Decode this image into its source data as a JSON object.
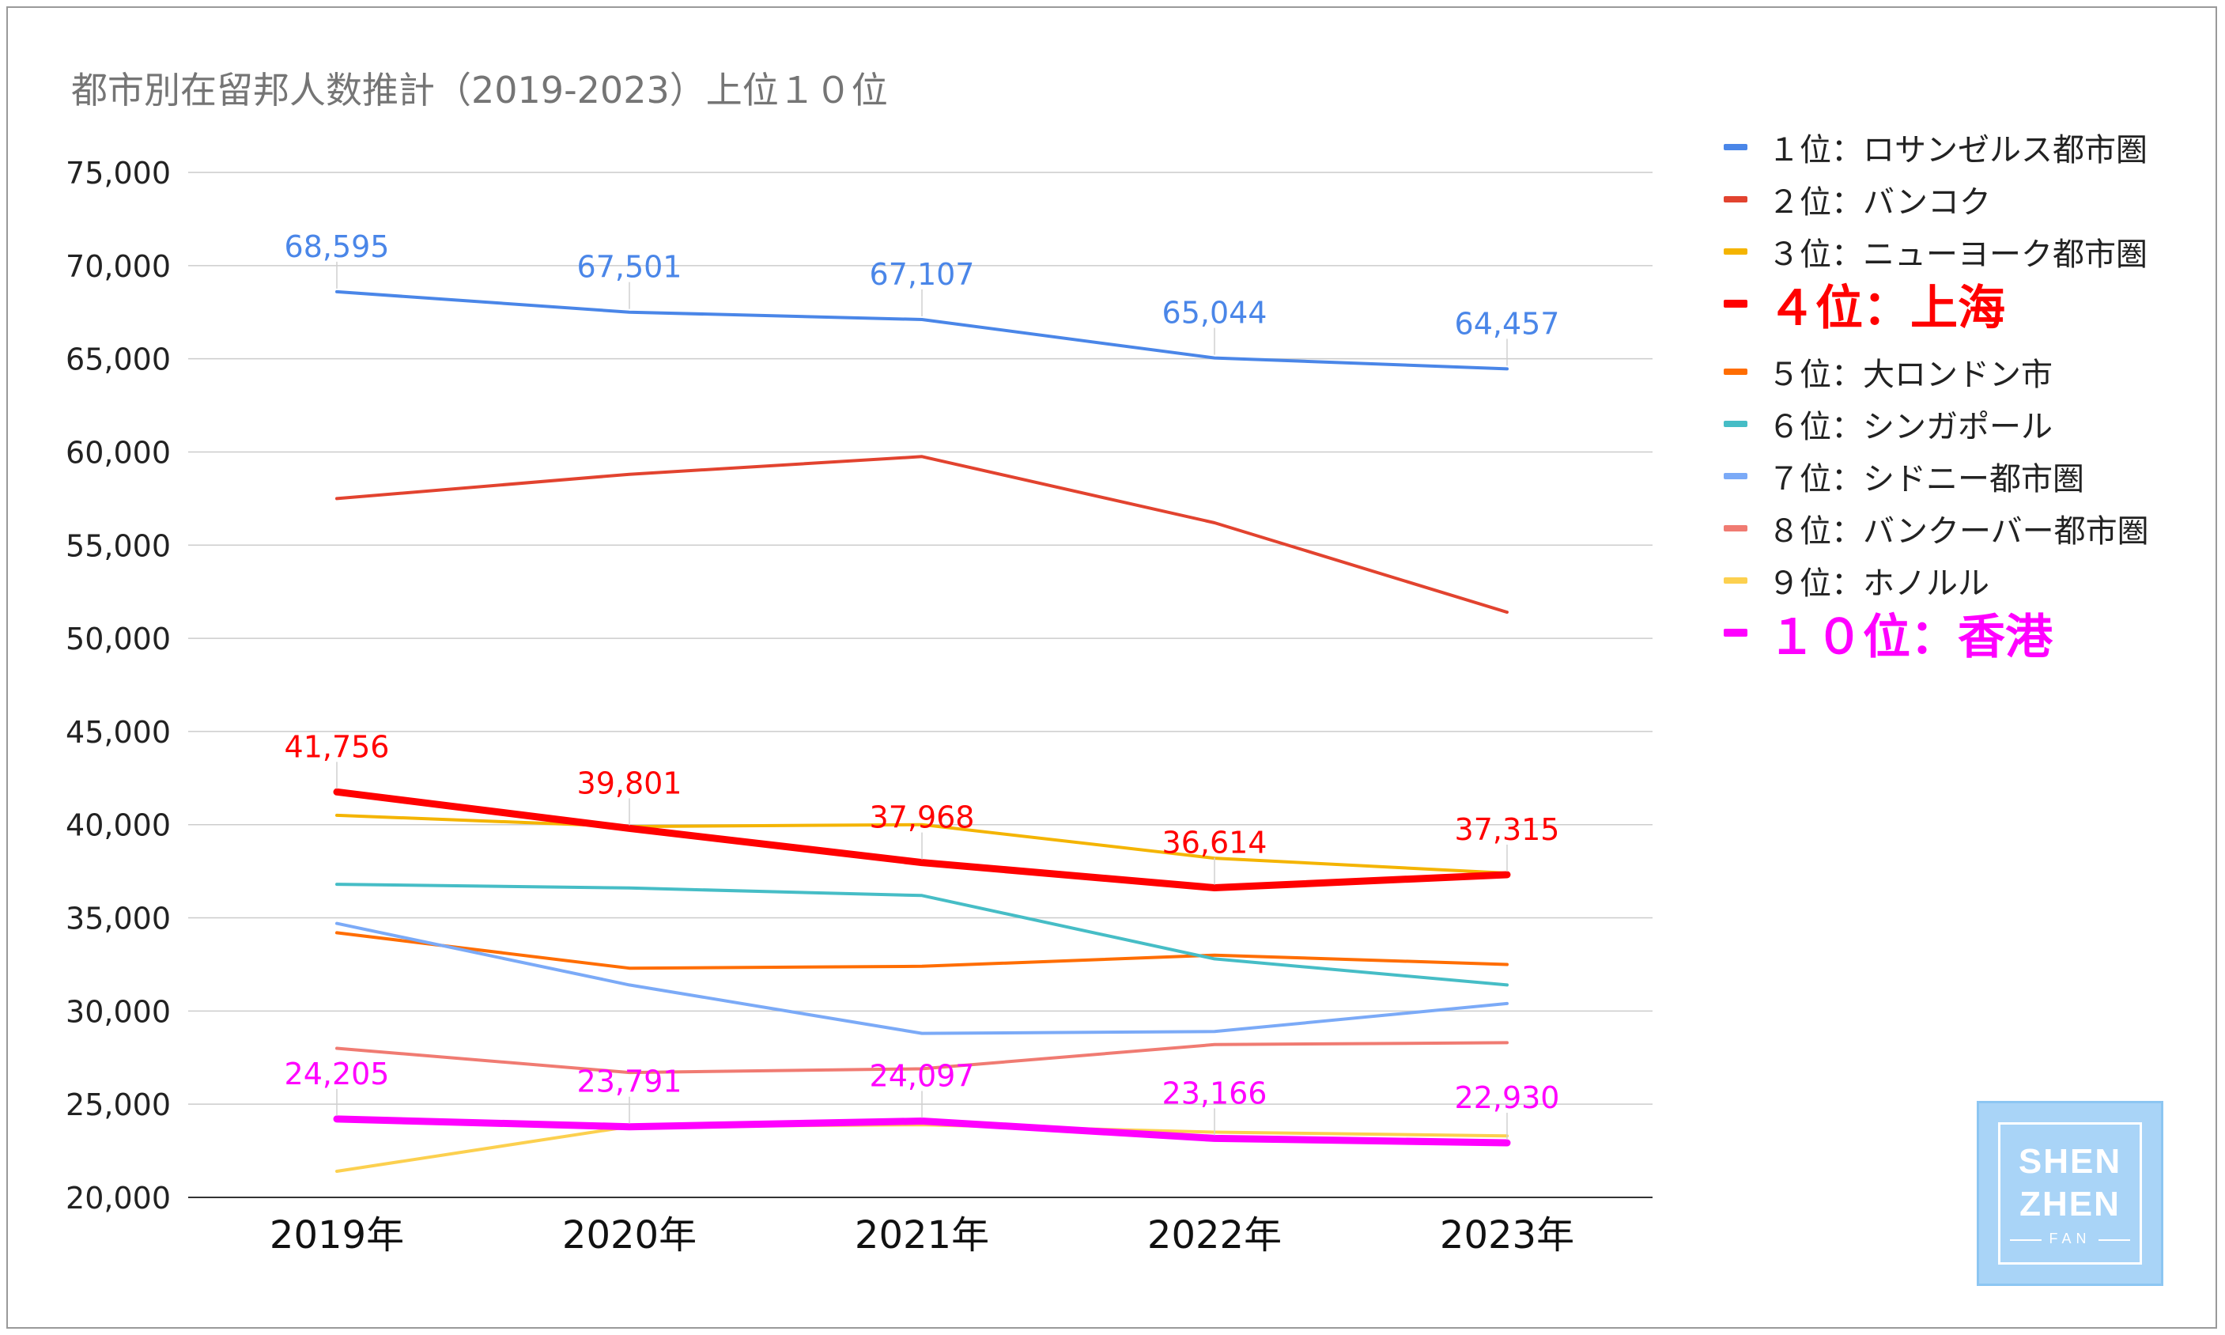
{
  "chart_data": {
    "type": "line",
    "title": "都市別在留邦人数推計（2019-2023）上位１０位",
    "categories": [
      "2019年",
      "2020年",
      "2021年",
      "2022年",
      "2023年"
    ],
    "ylim": [
      20000,
      75000
    ],
    "yticks": [
      "20,000",
      "25,000",
      "30,000",
      "35,000",
      "40,000",
      "45,000",
      "50,000",
      "55,000",
      "60,000",
      "65,000",
      "70,000",
      "75,000"
    ],
    "grid": true,
    "legend_position": "right",
    "series": [
      {
        "name": "１位：ロサンゼルス都市圏",
        "color": "#4a86e8",
        "values": [
          68595,
          67501,
          67107,
          65044,
          64457
        ],
        "labels": [
          "68,595",
          "67,501",
          "67,107",
          "65,044",
          "64,457"
        ],
        "bold": false
      },
      {
        "name": "２位：バンコク",
        "color": "#e2432f",
        "values": [
          57500,
          58800,
          59750,
          56200,
          51400
        ],
        "bold": false
      },
      {
        "name": "３位：ニューヨーク都市圏",
        "color": "#f4b400",
        "values": [
          40500,
          39900,
          40000,
          38200,
          37400
        ],
        "bold": false
      },
      {
        "name": "４位：上海",
        "color": "#ff0000",
        "values": [
          41756,
          39801,
          37968,
          36614,
          37315
        ],
        "labels": [
          "41,756",
          "39,801",
          "37,968",
          "36,614",
          "37,315"
        ],
        "bold": true
      },
      {
        "name": "５位：大ロンドン市",
        "color": "#ff6d01",
        "values": [
          34200,
          32300,
          32400,
          33000,
          32500
        ],
        "bold": false
      },
      {
        "name": "６位：シンガポール",
        "color": "#46bdc6",
        "values": [
          36800,
          36600,
          36200,
          32800,
          31400
        ],
        "bold": false
      },
      {
        "name": "７位：シドニー都市圏",
        "color": "#7baaf7",
        "values": [
          34700,
          31400,
          28800,
          28900,
          30400
        ],
        "bold": false
      },
      {
        "name": "８位：バンクーバー都市圏",
        "color": "#f07b72",
        "values": [
          28000,
          26700,
          26900,
          28200,
          28300
        ],
        "bold": false
      },
      {
        "name": "９位：ホノルル",
        "color": "#fcd04f",
        "values": [
          21400,
          23800,
          23900,
          23500,
          23300
        ],
        "bold": false
      },
      {
        "name": "１０位：香港",
        "color": "#ff00ff",
        "values": [
          24205,
          23791,
          24097,
          23166,
          22930
        ],
        "labels": [
          "24,205",
          "23,791",
          "24,097",
          "23,166",
          "22,930"
        ],
        "bold": true
      }
    ]
  },
  "logo": {
    "line1": "SHEN",
    "line2": "ZHEN",
    "line3": "FAN"
  }
}
